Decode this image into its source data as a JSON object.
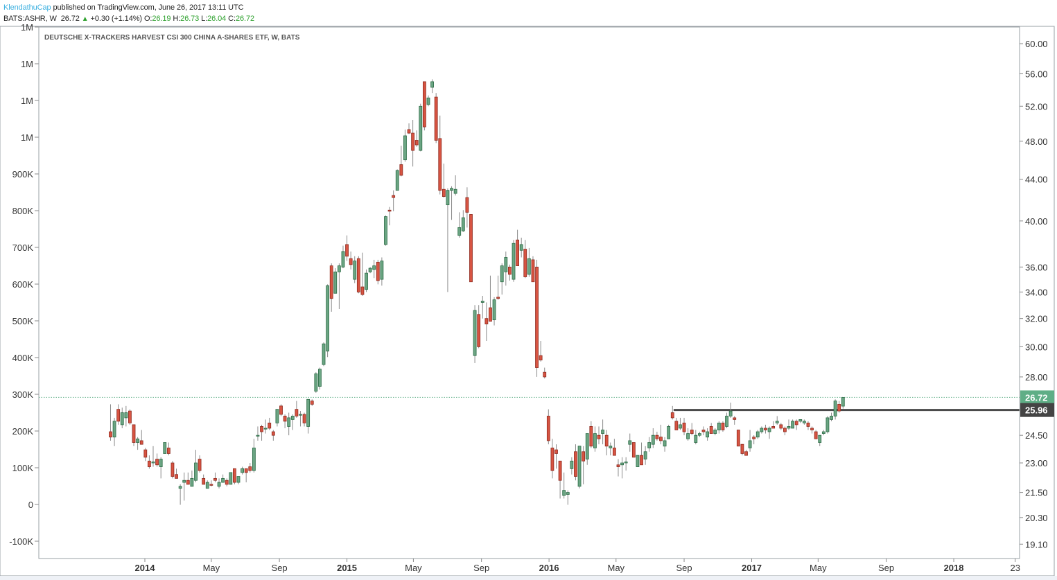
{
  "header": {
    "author": "KlendathuCap",
    "published": "published on TradingView.com, June 26, 2017 13:11 UTC",
    "symbol": "BATS:ASHR, W",
    "last": "26.72",
    "change": "+0.30 (+1.14%)",
    "o_label": "O:",
    "o": "26.19",
    "h_label": "H:",
    "h": "26.73",
    "l_label": "L:",
    "l": "26.04",
    "c_label": "C:",
    "c": "26.72"
  },
  "colors": {
    "up_fill": "#6BA583",
    "up_border": "#2B6B45",
    "down_fill": "#D75442",
    "down_border": "#8E2A1F",
    "wick": "#8a8a8a",
    "last_price_tag": "#5fae86",
    "level_tag": "#444444",
    "author": "#3bb0e0"
  },
  "chart_data": {
    "type": "candlestick",
    "title": "DEUTSCHE X-TRACKERS HARVEST CSI 300 CHINA A-SHARES ETF, W, BATS",
    "interval": "W",
    "first_bar_date": "2013-10-31",
    "y_scale": "log",
    "ylim": [
      19.1,
      60.0
    ],
    "right_axis_ticks": [
      "60.00",
      "56.00",
      "52.00",
      "48.00",
      "44.00",
      "40.00",
      "36.00",
      "34.00",
      "32.00",
      "30.00",
      "28.00",
      "24.50",
      "23.00",
      "21.50",
      "20.30",
      "19.10"
    ],
    "left_axis_ticks": [
      {
        "value": 1300,
        "label": "1M"
      },
      {
        "value": 1200,
        "label": "1M"
      },
      {
        "value": 1100,
        "label": "1M"
      },
      {
        "value": 1000,
        "label": "1M"
      },
      {
        "value": 900,
        "label": "900K"
      },
      {
        "value": 800,
        "label": "800K"
      },
      {
        "value": 700,
        "label": "700K"
      },
      {
        "value": 600,
        "label": "600K"
      },
      {
        "value": 500,
        "label": "500K"
      },
      {
        "value": 400,
        "label": "400K"
      },
      {
        "value": 300,
        "label": "300K"
      },
      {
        "value": 200,
        "label": "200K"
      },
      {
        "value": 100,
        "label": "100K"
      },
      {
        "value": 0,
        "label": "0"
      },
      {
        "value": -100,
        "label": "-100K"
      }
    ],
    "x_ticks": [
      {
        "date": "2014-01-01",
        "label": "2014",
        "major": true
      },
      {
        "date": "2014-05-01",
        "label": "May"
      },
      {
        "date": "2014-09-01",
        "label": "Sep"
      },
      {
        "date": "2015-01-01",
        "label": "2015",
        "major": true
      },
      {
        "date": "2015-05-01",
        "label": "May"
      },
      {
        "date": "2015-09-01",
        "label": "Sep"
      },
      {
        "date": "2016-01-01",
        "label": "2016",
        "major": true
      },
      {
        "date": "2016-05-01",
        "label": "May"
      },
      {
        "date": "2016-09-01",
        "label": "Sep"
      },
      {
        "date": "2017-01-01",
        "label": "2017",
        "major": true
      },
      {
        "date": "2017-05-01",
        "label": "May"
      },
      {
        "date": "2017-09-01",
        "label": "Sep"
      },
      {
        "date": "2018-01-01",
        "label": "2018",
        "major": true
      },
      {
        "date": "2018-04-22",
        "label": "23"
      }
    ],
    "last_price": {
      "value": 26.72,
      "label": "26.72"
    },
    "horizontal_level": {
      "value": 25.96,
      "label": "25.96",
      "start_date": "2016-08-13"
    },
    "ohlc": [
      [
        24.7,
        26.3,
        24.2,
        24.4
      ],
      [
        24.4,
        25.5,
        23.9,
        25.3
      ],
      [
        26.0,
        26.3,
        25.1,
        25.3
      ],
      [
        25.1,
        26.1,
        24.9,
        25.8
      ],
      [
        25.5,
        26.2,
        25.0,
        25.8
      ],
      [
        25.9,
        26.0,
        25.1,
        25.2
      ],
      [
        25.1,
        25.1,
        23.9,
        24.1
      ],
      [
        24.1,
        24.4,
        23.7,
        24.3
      ],
      [
        24.2,
        24.8,
        24.0,
        24.0
      ],
      [
        23.7,
        23.8,
        23.1,
        23.3
      ],
      [
        23.1,
        23.4,
        22.7,
        22.8
      ],
      [
        23.0,
        23.9,
        22.8,
        23.05
      ],
      [
        23.2,
        23.5,
        22.8,
        22.9
      ],
      [
        22.8,
        23.3,
        22.2,
        23.2
      ],
      [
        23.5,
        24.1,
        23.5,
        24.1
      ],
      [
        23.8,
        24.1,
        23.4,
        23.5
      ],
      [
        23.0,
        23.1,
        22.2,
        22.3
      ],
      [
        22.4,
        22.7,
        22.2,
        22.2
      ],
      [
        21.7,
        21.9,
        20.9,
        21.8
      ],
      [
        22.0,
        22.5,
        21.1,
        22.1
      ],
      [
        22.1,
        22.5,
        21.9,
        21.9
      ],
      [
        21.8,
        22.6,
        21.8,
        22.2
      ],
      [
        22.1,
        23.7,
        22.0,
        23.0
      ],
      [
        23.2,
        23.4,
        22.5,
        22.6
      ],
      [
        22.2,
        22.4,
        21.9,
        21.9
      ],
      [
        21.7,
        22.1,
        21.7,
        22.0
      ],
      [
        21.9,
        22.1,
        21.8,
        21.85
      ],
      [
        22.2,
        22.5,
        22.0,
        22.1
      ],
      [
        21.8,
        22.2,
        21.7,
        22.0
      ],
      [
        22.0,
        22.4,
        22.0,
        22.2
      ],
      [
        22.1,
        22.2,
        21.8,
        21.9
      ],
      [
        21.9,
        22.5,
        21.9,
        22.5
      ],
      [
        22.7,
        22.7,
        21.9,
        22.0
      ],
      [
        22.0,
        22.3,
        21.9,
        22.3
      ],
      [
        22.5,
        22.8,
        22.4,
        22.7
      ],
      [
        22.7,
        22.7,
        22.0,
        22.5
      ],
      [
        22.8,
        23.0,
        22.5,
        22.6
      ],
      [
        22.6,
        24.3,
        22.5,
        23.8
      ],
      [
        24.45,
        25.0,
        24.2,
        24.5
      ],
      [
        25.0,
        25.1,
        24.2,
        24.7
      ],
      [
        24.85,
        25.4,
        24.6,
        24.9
      ],
      [
        25.2,
        25.5,
        24.8,
        24.9
      ],
      [
        24.7,
        24.8,
        24.2,
        24.5
      ],
      [
        25.2,
        26.0,
        25.0,
        26.0
      ],
      [
        26.2,
        26.3,
        25.6,
        25.7
      ],
      [
        25.6,
        25.7,
        24.9,
        25.3
      ],
      [
        25.0,
        25.8,
        24.5,
        25.5
      ],
      [
        25.4,
        25.7,
        24.8,
        25.6
      ],
      [
        26.0,
        26.5,
        25.5,
        25.6
      ],
      [
        25.65,
        25.9,
        25.0,
        25.7
      ],
      [
        25.7,
        25.8,
        25.0,
        25.2
      ],
      [
        25.0,
        26.6,
        24.6,
        26.6
      ],
      [
        26.5,
        26.6,
        26.2,
        26.3
      ],
      [
        27.1,
        28.3,
        27.0,
        28.2
      ],
      [
        27.4,
        28.6,
        27.2,
        28.5
      ],
      [
        28.8,
        30.3,
        28.7,
        30.2
      ],
      [
        29.7,
        34.6,
        29.3,
        34.5
      ],
      [
        36.1,
        36.3,
        32.5,
        33.5
      ],
      [
        33.9,
        35.9,
        33.9,
        35.6
      ],
      [
        35.6,
        36.3,
        32.7,
        36.1
      ],
      [
        36.0,
        37.8,
        35.9,
        37.3
      ],
      [
        37.9,
        38.7,
        36.5,
        36.9
      ],
      [
        36.7,
        37.3,
        35.8,
        36.2
      ],
      [
        35.0,
        36.9,
        34.7,
        36.5
      ],
      [
        36.7,
        36.9,
        33.9,
        34.0
      ],
      [
        34.4,
        37.2,
        33.7,
        33.8
      ],
      [
        34.2,
        35.8,
        34.0,
        35.5
      ],
      [
        35.6,
        36.0,
        35.5,
        35.9
      ],
      [
        35.8,
        36.6,
        35.1,
        36.1
      ],
      [
        36.4,
        36.6,
        34.6,
        34.9
      ],
      [
        35.0,
        36.8,
        34.5,
        36.5
      ],
      [
        37.9,
        40.5,
        37.8,
        40.4
      ],
      [
        41.0,
        41.3,
        39.6,
        40.9
      ],
      [
        42.4,
        42.9,
        40.9,
        42.2
      ],
      [
        42.9,
        45.0,
        42.9,
        44.9
      ],
      [
        45.5,
        47.5,
        44.3,
        44.4
      ],
      [
        46.0,
        49.3,
        45.8,
        48.6
      ],
      [
        49.3,
        50.0,
        48.8,
        48.9
      ],
      [
        48.9,
        50.4,
        45.3,
        47.0
      ],
      [
        48.1,
        49.2,
        47.4,
        47.6
      ],
      [
        47.0,
        52.3,
        46.9,
        52.0
      ],
      [
        55.0,
        55.0,
        49.2,
        49.6
      ],
      [
        52.2,
        53.3,
        52.0,
        53.0
      ],
      [
        54.3,
        55.3,
        53.6,
        55.0
      ],
      [
        53.1,
        53.6,
        47.8,
        48.1
      ],
      [
        48.3,
        50.9,
        42.5,
        42.9
      ],
      [
        43.0,
        45.6,
        42.2,
        42.3
      ],
      [
        41.5,
        43.1,
        34.0,
        42.9
      ],
      [
        42.9,
        43.3,
        40.1,
        43.1
      ],
      [
        42.6,
        44.4,
        42.4,
        43.0
      ],
      [
        38.7,
        40.8,
        38.5,
        39.4
      ],
      [
        39.1,
        41.0,
        39.0,
        40.3
      ],
      [
        42.2,
        43.2,
        39.4,
        40.8
      ],
      [
        40.6,
        40.6,
        34.8,
        34.8
      ],
      [
        29.4,
        33.0,
        28.9,
        32.6
      ],
      [
        32.3,
        33.0,
        29.9,
        30.0
      ],
      [
        33.2,
        33.7,
        32.0,
        33.3
      ],
      [
        32.0,
        33.2,
        30.4,
        31.6
      ],
      [
        32.8,
        35.3,
        31.8,
        31.8
      ],
      [
        31.9,
        33.6,
        31.5,
        33.4
      ],
      [
        33.6,
        35.3,
        33.4,
        33.5
      ],
      [
        34.8,
        36.3,
        33.8,
        36.1
      ],
      [
        35.6,
        37.3,
        34.5,
        36.8
      ],
      [
        36.0,
        36.2,
        34.9,
        35.4
      ],
      [
        35.0,
        38.3,
        34.8,
        38.0
      ],
      [
        38.3,
        39.2,
        36.1,
        36.1
      ],
      [
        37.4,
        38.5,
        36.8,
        37.9
      ],
      [
        37.5,
        38.3,
        35.1,
        35.2
      ],
      [
        35.4,
        37.6,
        35.2,
        36.7
      ],
      [
        36.6,
        36.9,
        34.8,
        34.8
      ],
      [
        36.0,
        36.6,
        28.0,
        28.6
      ],
      [
        29.4,
        30.4,
        29.0,
        29.1
      ],
      [
        28.3,
        28.6,
        27.9,
        28.0
      ],
      [
        25.6,
        26.0,
        24.0,
        24.2
      ],
      [
        23.8,
        24.3,
        22.2,
        22.6
      ],
      [
        23.7,
        24.0,
        22.7,
        23.5
      ],
      [
        23.1,
        23.1,
        21.2,
        22.1
      ],
      [
        21.35,
        22.5,
        21.2,
        21.6
      ],
      [
        21.4,
        21.6,
        20.9,
        21.5
      ],
      [
        22.7,
        23.3,
        22.4,
        23.1
      ],
      [
        23.6,
        24.0,
        22.1,
        22.3
      ],
      [
        21.8,
        23.9,
        21.7,
        23.9
      ],
      [
        23.6,
        23.9,
        21.9,
        23.1
      ],
      [
        23.2,
        24.6,
        22.9,
        24.6
      ],
      [
        25.0,
        25.3,
        23.8,
        23.9
      ],
      [
        23.8,
        25.0,
        23.6,
        24.6
      ],
      [
        24.5,
        25.0,
        24.0,
        24.3
      ],
      [
        24.6,
        25.4,
        24.0,
        24.8
      ],
      [
        24.5,
        24.8,
        23.4,
        23.9
      ],
      [
        23.8,
        24.1,
        23.4,
        23.9
      ],
      [
        23.8,
        24.3,
        23.4,
        23.4
      ],
      [
        22.9,
        23.2,
        22.3,
        22.8
      ],
      [
        22.9,
        23.3,
        22.2,
        23.0
      ],
      [
        23.0,
        23.3,
        22.6,
        23.05
      ],
      [
        24.0,
        24.6,
        23.6,
        24.2
      ],
      [
        24.1,
        24.1,
        23.3,
        23.3
      ],
      [
        22.8,
        23.4,
        22.8,
        23.4
      ],
      [
        23.4,
        24.1,
        22.9,
        22.9
      ],
      [
        23.2,
        23.9,
        22.9,
        23.6
      ],
      [
        23.8,
        24.4,
        23.6,
        24.1
      ],
      [
        24.0,
        24.9,
        23.8,
        24.5
      ],
      [
        24.5,
        24.7,
        24.2,
        24.3
      ],
      [
        24.4,
        25.1,
        24.0,
        24.2
      ],
      [
        23.9,
        24.4,
        23.6,
        24.2
      ],
      [
        24.3,
        25.1,
        24.3,
        25.0
      ],
      [
        25.8,
        26.2,
        25.4,
        25.5
      ],
      [
        25.3,
        25.5,
        24.8,
        24.8
      ],
      [
        24.9,
        25.5,
        24.8,
        25.1
      ],
      [
        25.2,
        25.5,
        24.5,
        24.7
      ],
      [
        24.3,
        24.9,
        24.2,
        24.6
      ],
      [
        24.8,
        25.2,
        24.5,
        24.6
      ],
      [
        24.1,
        24.8,
        24.0,
        24.5
      ],
      [
        24.5,
        24.7,
        24.4,
        24.6
      ],
      [
        24.8,
        25.0,
        24.5,
        24.7
      ],
      [
        24.4,
        24.9,
        24.2,
        24.7
      ],
      [
        25.0,
        25.2,
        24.6,
        24.6
      ],
      [
        24.6,
        24.9,
        24.5,
        24.8
      ],
      [
        24.8,
        25.3,
        24.6,
        25.2
      ],
      [
        25.2,
        25.3,
        24.7,
        24.8
      ],
      [
        25.0,
        25.8,
        24.9,
        25.6
      ],
      [
        25.6,
        26.4,
        25.5,
        25.9
      ],
      [
        25.5,
        25.6,
        25.1,
        25.4
      ],
      [
        24.8,
        24.8,
        23.9,
        23.9
      ],
      [
        24.0,
        24.0,
        23.4,
        23.5
      ],
      [
        23.6,
        23.7,
        23.4,
        23.4
      ],
      [
        23.8,
        24.8,
        23.6,
        24.2
      ],
      [
        24.4,
        24.5,
        24.0,
        24.3
      ],
      [
        24.4,
        24.8,
        24.3,
        24.7
      ],
      [
        24.7,
        25.0,
        24.6,
        24.9
      ],
      [
        24.9,
        25.1,
        24.6,
        24.8
      ],
      [
        24.7,
        25.0,
        24.3,
        24.9
      ],
      [
        25.0,
        25.3,
        24.9,
        24.9
      ],
      [
        25.2,
        25.6,
        25.1,
        25.3
      ],
      [
        25.1,
        25.2,
        24.8,
        24.9
      ],
      [
        24.9,
        25.0,
        24.5,
        24.7
      ],
      [
        24.9,
        25.4,
        24.8,
        25.0
      ],
      [
        24.9,
        25.4,
        24.9,
        25.3
      ],
      [
        25.3,
        25.4,
        24.8,
        25.1
      ],
      [
        25.3,
        25.4,
        25.2,
        25.4
      ],
      [
        25.2,
        25.4,
        25.1,
        25.3
      ],
      [
        25.2,
        25.3,
        24.8,
        25.0
      ],
      [
        24.9,
        25.0,
        24.6,
        24.8
      ],
      [
        24.7,
        24.8,
        24.3,
        24.3
      ],
      [
        24.1,
        24.5,
        23.9,
        24.5
      ],
      [
        24.6,
        24.8,
        24.5,
        24.7
      ],
      [
        24.7,
        25.6,
        24.6,
        25.5
      ],
      [
        25.4,
        25.8,
        25.3,
        25.6
      ],
      [
        25.6,
        26.6,
        25.4,
        26.5
      ],
      [
        26.3,
        26.5,
        25.8,
        25.9
      ],
      [
        26.19,
        26.73,
        26.04,
        26.72
      ]
    ]
  }
}
